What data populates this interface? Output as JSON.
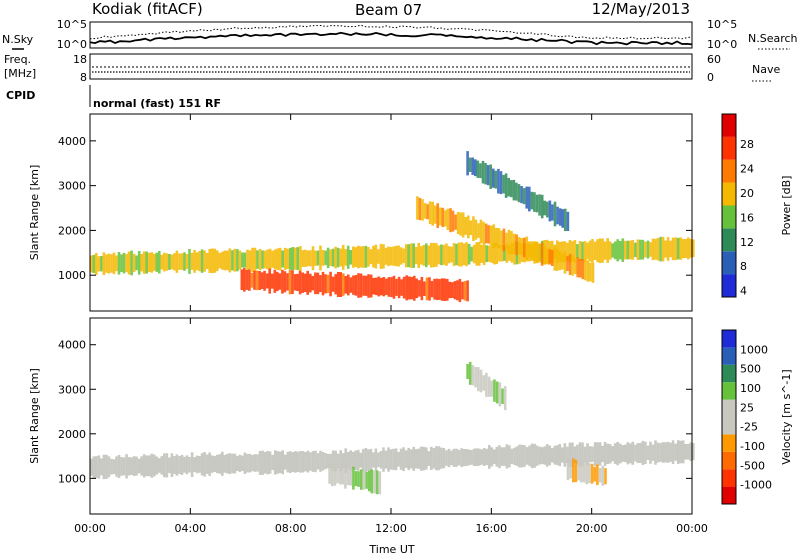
{
  "header": {
    "station": "Kodiak (fitACF)",
    "beam": "Beam 07",
    "date": "12/May/2013"
  },
  "status_panel": {
    "nsky_label": "N.Sky",
    "nsky_ticks": [
      "10^5",
      "10^0"
    ],
    "nsearch_label": "N.Search",
    "nsearch_ticks": [
      "10^5",
      "10^0"
    ],
    "freq_label": "Freq.",
    "freq_unit": "[MHz]",
    "freq_ticks": [
      "18",
      "8"
    ],
    "nave_label": "Nave",
    "nave_ticks": [
      "60",
      "0"
    ],
    "cpid_label": "CPID",
    "cpid_value": "normal (fast) 151 RF"
  },
  "colors": {
    "power_scale": [
      "#1f2bd6",
      "#2a5fb8",
      "#2e8b57",
      "#66c23a",
      "#f5b800",
      "#ff7a00",
      "#ff3300",
      "#e00000"
    ],
    "velocity_scale": [
      "#1f2bd6",
      "#2a5fb8",
      "#2e8b57",
      "#66c23a",
      "#c8c8c0",
      "#c8c8c0",
      "#ff9900",
      "#ff6a00",
      "#ff3300",
      "#e00000"
    ],
    "ground_scatter": "#c0c0b8"
  },
  "chart_data": [
    {
      "type": "heatmap",
      "title": "",
      "xlabel": "Time UT",
      "ylabel": "Slant Range [km]",
      "x_ticks": [
        "00:00",
        "04:00",
        "08:00",
        "12:00",
        "16:00",
        "20:00",
        "00:00"
      ],
      "y_ticks": [
        "1000",
        "2000",
        "3000",
        "4000"
      ],
      "xlim": [
        0,
        24
      ],
      "ylim": [
        200,
        4600
      ],
      "colorbar": {
        "label": "Power [dB]",
        "ticks": [
          "28",
          "24",
          "20",
          "16",
          "12",
          "8",
          "4"
        ],
        "range": [
          0,
          30
        ]
      },
      "features": [
        {
          "name": "band-main",
          "start_hour": 0,
          "end_hour": 24,
          "range_start_km": 1250,
          "range_end_km": 1600,
          "value": 16
        },
        {
          "name": "band-low",
          "start_hour": 6,
          "end_hour": 15,
          "range_start_km": 900,
          "range_end_km": 650,
          "value": 24
        },
        {
          "name": "band-rising",
          "start_hour": 13,
          "end_hour": 20,
          "range_start_km": 2500,
          "range_end_km": 1050,
          "value": 18
        },
        {
          "name": "band-upper-arc",
          "start_hour": 15,
          "end_hour": 19,
          "range_start_km": 3500,
          "range_end_km": 2200,
          "value": 8
        }
      ]
    },
    {
      "type": "heatmap",
      "title": "",
      "xlabel": "Time UT",
      "ylabel": "Slant Range [km]",
      "x_ticks": [
        "00:00",
        "04:00",
        "08:00",
        "12:00",
        "16:00",
        "20:00",
        "00:00"
      ],
      "y_ticks": [
        "1000",
        "2000",
        "3000",
        "4000"
      ],
      "xlim": [
        0,
        24
      ],
      "ylim": [
        200,
        4600
      ],
      "colorbar": {
        "label": "Velocity [m s^-1]",
        "ticks": [
          "1000",
          "500",
          "100",
          "25",
          "-25",
          "-100",
          "-500",
          "-1000"
        ],
        "range": [
          -1000,
          1000
        ]
      },
      "features": [
        {
          "name": "band-main",
          "start_hour": 0,
          "end_hour": 24,
          "range_start_km": 1250,
          "range_end_km": 1600,
          "value": 0
        },
        {
          "name": "green-patch",
          "start_hour": 9.5,
          "end_hour": 11.5,
          "range_start_km": 1100,
          "range_end_km": 900,
          "value": 150
        },
        {
          "name": "orange-patch",
          "start_hour": 19,
          "end_hour": 20.5,
          "range_start_km": 1200,
          "range_end_km": 1050,
          "value": -120
        },
        {
          "name": "green-arc",
          "start_hour": 15,
          "end_hour": 16.5,
          "range_start_km": 3400,
          "range_end_km": 2800,
          "value": 150
        }
      ]
    }
  ]
}
